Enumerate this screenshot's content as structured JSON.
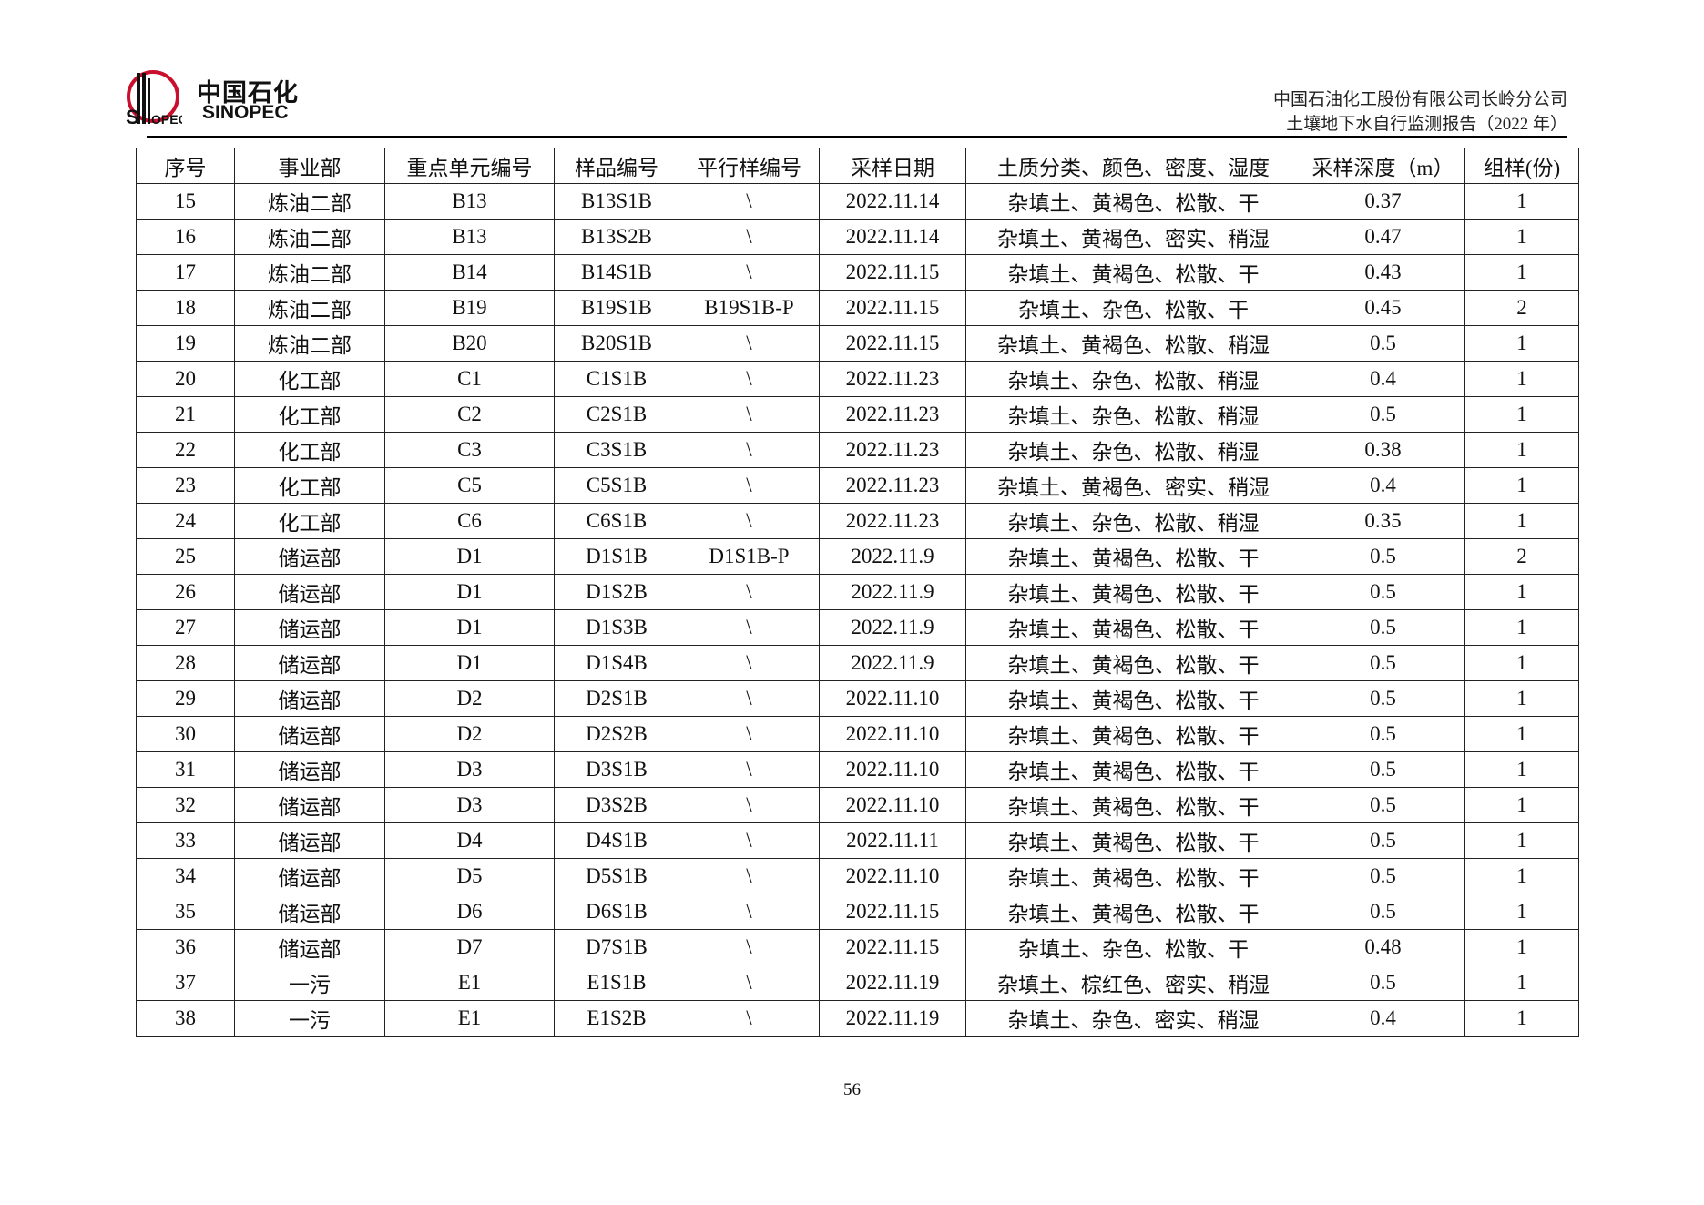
{
  "header": {
    "logo_cn": "中国石化",
    "logo_en": "SINOPEC",
    "company": "中国石油化工股份有限公司长岭分公司",
    "report_title": "土壤地下水自行监测报告（2022 年）"
  },
  "table": {
    "columns": [
      "序号",
      "事业部",
      "重点单元编号",
      "样品编号",
      "平行样编号",
      "采样日期",
      "土质分类、颜色、密度、湿度",
      "采样深度（m）",
      "组样(份)"
    ],
    "rows": [
      [
        "15",
        "炼油二部",
        "B13",
        "B13S1B",
        "\\",
        "2022.11.14",
        "杂填土、黄褐色、松散、干",
        "0.37",
        "1"
      ],
      [
        "16",
        "炼油二部",
        "B13",
        "B13S2B",
        "\\",
        "2022.11.14",
        "杂填土、黄褐色、密实、稍湿",
        "0.47",
        "1"
      ],
      [
        "17",
        "炼油二部",
        "B14",
        "B14S1B",
        "\\",
        "2022.11.15",
        "杂填土、黄褐色、松散、干",
        "0.43",
        "1"
      ],
      [
        "18",
        "炼油二部",
        "B19",
        "B19S1B",
        "B19S1B-P",
        "2022.11.15",
        "杂填土、杂色、松散、干",
        "0.45",
        "2"
      ],
      [
        "19",
        "炼油二部",
        "B20",
        "B20S1B",
        "\\",
        "2022.11.15",
        "杂填土、黄褐色、松散、稍湿",
        "0.5",
        "1"
      ],
      [
        "20",
        "化工部",
        "C1",
        "C1S1B",
        "\\",
        "2022.11.23",
        "杂填土、杂色、松散、稍湿",
        "0.4",
        "1"
      ],
      [
        "21",
        "化工部",
        "C2",
        "C2S1B",
        "\\",
        "2022.11.23",
        "杂填土、杂色、松散、稍湿",
        "0.5",
        "1"
      ],
      [
        "22",
        "化工部",
        "C3",
        "C3S1B",
        "\\",
        "2022.11.23",
        "杂填土、杂色、松散、稍湿",
        "0.38",
        "1"
      ],
      [
        "23",
        "化工部",
        "C5",
        "C5S1B",
        "\\",
        "2022.11.23",
        "杂填土、黄褐色、密实、稍湿",
        "0.4",
        "1"
      ],
      [
        "24",
        "化工部",
        "C6",
        "C6S1B",
        "\\",
        "2022.11.23",
        "杂填土、杂色、松散、稍湿",
        "0.35",
        "1"
      ],
      [
        "25",
        "储运部",
        "D1",
        "D1S1B",
        "D1S1B-P",
        "2022.11.9",
        "杂填土、黄褐色、松散、干",
        "0.5",
        "2"
      ],
      [
        "26",
        "储运部",
        "D1",
        "D1S2B",
        "\\",
        "2022.11.9",
        "杂填土、黄褐色、松散、干",
        "0.5",
        "1"
      ],
      [
        "27",
        "储运部",
        "D1",
        "D1S3B",
        "\\",
        "2022.11.9",
        "杂填土、黄褐色、松散、干",
        "0.5",
        "1"
      ],
      [
        "28",
        "储运部",
        "D1",
        "D1S4B",
        "\\",
        "2022.11.9",
        "杂填土、黄褐色、松散、干",
        "0.5",
        "1"
      ],
      [
        "29",
        "储运部",
        "D2",
        "D2S1B",
        "\\",
        "2022.11.10",
        "杂填土、黄褐色、松散、干",
        "0.5",
        "1"
      ],
      [
        "30",
        "储运部",
        "D2",
        "D2S2B",
        "\\",
        "2022.11.10",
        "杂填土、黄褐色、松散、干",
        "0.5",
        "1"
      ],
      [
        "31",
        "储运部",
        "D3",
        "D3S1B",
        "\\",
        "2022.11.10",
        "杂填土、黄褐色、松散、干",
        "0.5",
        "1"
      ],
      [
        "32",
        "储运部",
        "D3",
        "D3S2B",
        "\\",
        "2022.11.10",
        "杂填土、黄褐色、松散、干",
        "0.5",
        "1"
      ],
      [
        "33",
        "储运部",
        "D4",
        "D4S1B",
        "\\",
        "2022.11.11",
        "杂填土、黄褐色、松散、干",
        "0.5",
        "1"
      ],
      [
        "34",
        "储运部",
        "D5",
        "D5S1B",
        "\\",
        "2022.11.10",
        "杂填土、黄褐色、松散、干",
        "0.5",
        "1"
      ],
      [
        "35",
        "储运部",
        "D6",
        "D6S1B",
        "\\",
        "2022.11.15",
        "杂填土、黄褐色、松散、干",
        "0.5",
        "1"
      ],
      [
        "36",
        "储运部",
        "D7",
        "D7S1B",
        "\\",
        "2022.11.15",
        "杂填土、杂色、松散、干",
        "0.48",
        "1"
      ],
      [
        "37",
        "一污",
        "E1",
        "E1S1B",
        "\\",
        "2022.11.19",
        "杂填土、棕红色、密实、稍湿",
        "0.5",
        "1"
      ],
      [
        "38",
        "一污",
        "E1",
        "E1S2B",
        "\\",
        "2022.11.19",
        "杂填土、杂色、密实、稍湿",
        "0.4",
        "1"
      ]
    ]
  },
  "footer": {
    "page_number": "56"
  },
  "colors": {
    "logo_red": "#c8102e",
    "text": "#111111"
  }
}
